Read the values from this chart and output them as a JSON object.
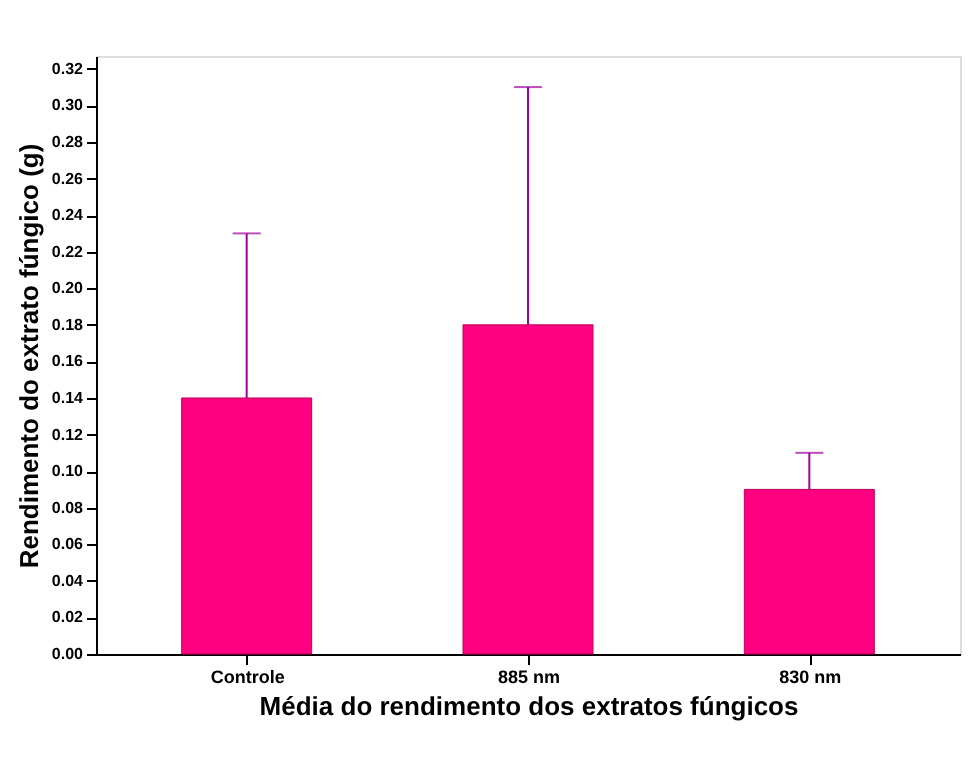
{
  "chart_data": {
    "type": "bar",
    "xlabel": "Média do rendimento dos extratos fúngicos",
    "ylabel": "Rendimento do extrato fúngico (g)",
    "categories": [
      "Controle",
      "885 nm",
      "830 nm"
    ],
    "values": [
      0.14,
      0.18,
      0.09
    ],
    "errors": [
      [
        0.14,
        0.23
      ],
      [
        0.18,
        0.31
      ],
      [
        0.09,
        0.11
      ]
    ],
    "color": "#ff0080",
    "ylim": [
      0,
      0.327
    ],
    "yticks": [
      {
        "value": 0,
        "label": "0.00"
      },
      {
        "value": 0.02,
        "label": "0.02"
      },
      {
        "value": 0.04,
        "label": "0.04"
      },
      {
        "value": 0.06,
        "label": "0.06"
      },
      {
        "value": 0.08,
        "label": "0.08"
      },
      {
        "value": 0.1,
        "label": "0.10"
      },
      {
        "value": 0.12,
        "label": "0.12"
      },
      {
        "value": 0.14,
        "label": "0.14"
      },
      {
        "value": 0.16,
        "label": "0.16"
      },
      {
        "value": 0.18,
        "label": "0.18"
      },
      {
        "value": 0.2,
        "label": "0.20"
      },
      {
        "value": 0.22,
        "label": "0.22"
      },
      {
        "value": 0.24,
        "label": "0.24"
      },
      {
        "value": 0.26,
        "label": "0.26"
      },
      {
        "value": 0.28,
        "label": "0.28"
      },
      {
        "value": 0.3,
        "label": "0.30"
      },
      {
        "value": 0.32,
        "label": "0.32"
      }
    ],
    "grid": false
  }
}
